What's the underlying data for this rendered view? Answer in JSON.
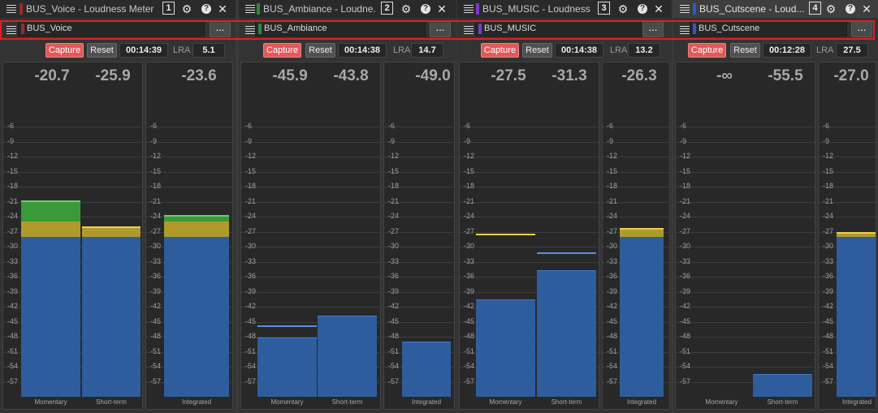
{
  "colors": {
    "meter_blue": "#2e5d9e",
    "meter_blue_top": "#4878c4",
    "meter_yellow": "#b09a2c",
    "meter_yellow_top": "#e8d04a",
    "meter_green": "#3a9a3a",
    "meter_green_top": "#6ad06a",
    "peak_yellow": "#f0d040",
    "peak_blue": "#5a8ee0",
    "capture_red": "#e05a5a",
    "selection_red": "#e02020"
  },
  "scale": {
    "range_db": [
      -60,
      0
    ],
    "ticks": [
      "-6",
      "-9",
      "-12",
      "-15",
      "-18",
      "-21",
      "-24",
      "-27",
      "-30",
      "-33",
      "-36",
      "-39",
      "-42",
      "-45",
      "-48",
      "-51",
      "-54",
      "-57"
    ]
  },
  "panels": [
    {
      "tab_title": "BUS_Voice - Loudness Meter",
      "bus_color": "#9a2a2a",
      "number": "1",
      "bus_name": "BUS_Voice",
      "more_label": "...",
      "capture_label": "Capture",
      "reset_label": "Reset",
      "time": "00:14:39",
      "lra_label": "LRA",
      "lra": "5.1",
      "momentary_readout": "-20.7",
      "shortterm_readout": "-25.9",
      "integrated_readout": "-23.6",
      "momentary_label": "Momentary",
      "shortterm_label": "Short-term",
      "integrated_label": "Integrated",
      "momentary_level": -20.7,
      "shortterm_level": -25.9,
      "integrated_level": -23.6,
      "momentary_peak": -20.7,
      "shortterm_peak": -25.9,
      "peak_color": "yellow"
    },
    {
      "tab_title": "BUS_Ambiance - Loudne...",
      "bus_color": "#2a8a3a",
      "number": "2",
      "bus_name": "BUS_Ambiance",
      "more_label": "...",
      "capture_label": "Capture",
      "reset_label": "Reset",
      "time": "00:14:38",
      "lra_label": "LRA",
      "lra": "14.7",
      "momentary_readout": "-45.9",
      "shortterm_readout": "-43.8",
      "integrated_readout": "-49.0",
      "momentary_label": "Momentary",
      "shortterm_label": "Short-term",
      "integrated_label": "Integrated",
      "momentary_level": -48.2,
      "shortterm_level": -43.8,
      "integrated_level": -49.0,
      "momentary_peak": -45.9,
      "shortterm_peak": -43.8,
      "peak_color": "blue"
    },
    {
      "tab_title": "BUS_MUSIC - Loudness ...",
      "bus_color": "#7a3ad0",
      "number": "3",
      "bus_name": "BUS_MUSIC",
      "more_label": "...",
      "capture_label": "Capture",
      "reset_label": "Reset",
      "time": "00:14:38",
      "lra_label": "LRA",
      "lra": "13.2",
      "momentary_readout": "-27.5",
      "shortterm_readout": "-31.3",
      "integrated_readout": "-26.3",
      "momentary_label": "Momentary",
      "shortterm_label": "Short-term",
      "integrated_label": "Integrated",
      "momentary_level": -40.6,
      "shortterm_level": -34.7,
      "integrated_level": -26.3,
      "momentary_peak": -27.5,
      "shortterm_peak": -31.3,
      "peak_color": "mixed"
    },
    {
      "tab_title": "BUS_Cutscene - Loud...",
      "bus_color": "#2a5ad0",
      "number": "4",
      "bus_name": "BUS_Cutscene",
      "more_label": "...",
      "capture_label": "Capture",
      "reset_label": "Reset",
      "time": "00:12:28",
      "lra_label": "LRA",
      "lra": "27.5",
      "momentary_readout": "-∞",
      "shortterm_readout": "-55.5",
      "integrated_readout": "-27.0",
      "momentary_label": "Momentary",
      "shortterm_label": "Short-term",
      "integrated_label": "Integrated",
      "momentary_level": null,
      "shortterm_level": -55.5,
      "integrated_level": -27.0,
      "momentary_peak": null,
      "shortterm_peak": -55.5,
      "peak_color": "blue",
      "active": true
    }
  ]
}
